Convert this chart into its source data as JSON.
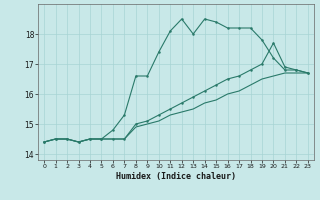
{
  "xlabel": "Humidex (Indice chaleur)",
  "background_color": "#c8e8e8",
  "grid_color": "#a8d4d4",
  "line_color": "#2a7a6a",
  "xlim": [
    -0.5,
    23.5
  ],
  "ylim": [
    13.8,
    19.0
  ],
  "yticks": [
    14,
    15,
    16,
    17,
    18
  ],
  "xticks": [
    0,
    1,
    2,
    3,
    4,
    5,
    6,
    7,
    8,
    9,
    10,
    11,
    12,
    13,
    14,
    15,
    16,
    17,
    18,
    19,
    20,
    21,
    22,
    23
  ],
  "line1_x": [
    0,
    1,
    2,
    3,
    4,
    5,
    6,
    7,
    8,
    9,
    10,
    11,
    12,
    13,
    14,
    15,
    16,
    17,
    18,
    19,
    20,
    21,
    22,
    23
  ],
  "line1_y": [
    14.4,
    14.5,
    14.5,
    14.4,
    14.5,
    14.5,
    14.8,
    15.3,
    16.6,
    16.6,
    17.4,
    18.1,
    18.5,
    18.0,
    18.5,
    18.4,
    18.2,
    18.2,
    18.2,
    17.8,
    17.2,
    16.8,
    16.8,
    16.7
  ],
  "line2_x": [
    0,
    1,
    2,
    3,
    4,
    5,
    6,
    7,
    8,
    9,
    10,
    11,
    12,
    13,
    14,
    15,
    16,
    17,
    18,
    19,
    20,
    21,
    22,
    23
  ],
  "line2_y": [
    14.4,
    14.5,
    14.5,
    14.4,
    14.5,
    14.5,
    14.5,
    14.5,
    15.0,
    15.1,
    15.3,
    15.5,
    15.7,
    15.9,
    16.1,
    16.3,
    16.5,
    16.6,
    16.8,
    17.0,
    17.7,
    16.9,
    16.8,
    16.7
  ],
  "line3_x": [
    0,
    1,
    2,
    3,
    4,
    5,
    6,
    7,
    8,
    9,
    10,
    11,
    12,
    13,
    14,
    15,
    16,
    17,
    18,
    19,
    20,
    21,
    22,
    23
  ],
  "line3_y": [
    14.4,
    14.5,
    14.5,
    14.4,
    14.5,
    14.5,
    14.5,
    14.5,
    14.9,
    15.0,
    15.1,
    15.3,
    15.4,
    15.5,
    15.7,
    15.8,
    16.0,
    16.1,
    16.3,
    16.5,
    16.6,
    16.7,
    16.7,
    16.7
  ]
}
